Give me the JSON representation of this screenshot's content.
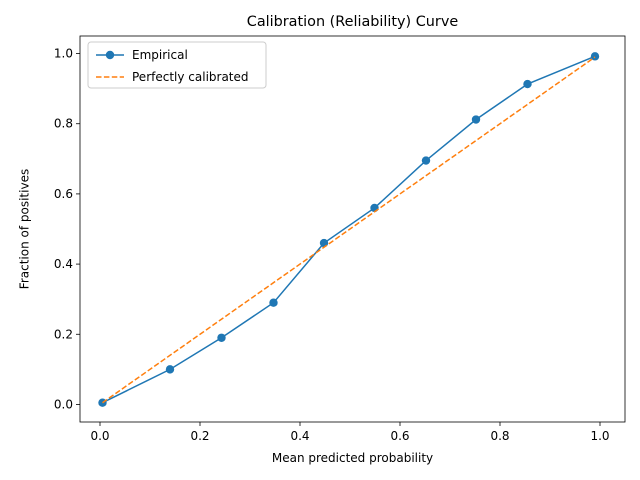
{
  "chart_data": {
    "type": "line",
    "title": "Calibration (Reliability) Curve",
    "xlabel": "Mean predicted probability",
    "ylabel": "Fraction of positives",
    "xlim": [
      -0.04,
      1.05
    ],
    "ylim": [
      -0.05,
      1.05
    ],
    "xticks": [
      0.0,
      0.2,
      0.4,
      0.6,
      0.8,
      1.0
    ],
    "xtick_labels": [
      "0.0",
      "0.2",
      "0.4",
      "0.6",
      "0.8",
      "1.0"
    ],
    "yticks": [
      0.0,
      0.2,
      0.4,
      0.6,
      0.8,
      1.0
    ],
    "ytick_labels": [
      "0.0",
      "0.2",
      "0.4",
      "0.6",
      "0.8",
      "1.0"
    ],
    "grid": false,
    "legend": "top-left",
    "series": [
      {
        "name": "Empirical",
        "style": "solid-with-circle-markers",
        "color": "#1f77b4",
        "x": [
          0.005,
          0.14,
          0.243,
          0.347,
          0.448,
          0.549,
          0.652,
          0.752,
          0.855,
          0.99
        ],
        "y": [
          0.005,
          0.1,
          0.19,
          0.29,
          0.46,
          0.56,
          0.695,
          0.812,
          0.913,
          0.992
        ]
      },
      {
        "name": "Perfectly calibrated",
        "style": "dashed",
        "color": "#ff7f0e",
        "x": [
          0.005,
          0.99
        ],
        "y": [
          0.005,
          0.99
        ]
      }
    ]
  }
}
